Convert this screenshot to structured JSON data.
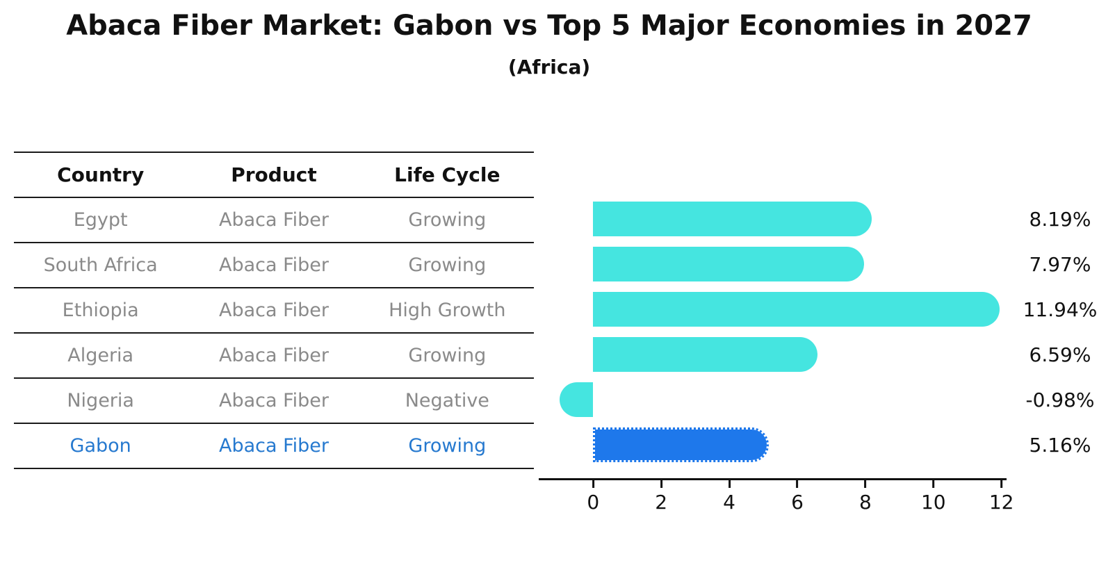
{
  "title": "Abaca Fiber Market: Gabon vs Top 5 Major Economies in 2027",
  "subtitle": "(Africa)",
  "table": {
    "headers": [
      "Country",
      "Product",
      "Life Cycle"
    ],
    "rows": [
      {
        "country": "Egypt",
        "product": "Abaca Fiber",
        "life_cycle": "Growing",
        "highlight": false
      },
      {
        "country": "South Africa",
        "product": "Abaca Fiber",
        "life_cycle": "Growing",
        "highlight": false
      },
      {
        "country": "Ethiopia",
        "product": "Abaca Fiber",
        "life_cycle": "High Growth",
        "highlight": false
      },
      {
        "country": "Algeria",
        "product": "Abaca Fiber",
        "life_cycle": "Growing",
        "highlight": false
      },
      {
        "country": "Nigeria",
        "product": "Abaca Fiber",
        "life_cycle": "Negative",
        "highlight": false
      },
      {
        "country": "Gabon",
        "product": "Abaca Fiber",
        "life_cycle": "Growing",
        "highlight": true
      }
    ]
  },
  "chart_data": {
    "type": "bar",
    "orientation": "horizontal",
    "title": "Abaca Fiber Market: Gabon vs Top 5 Major Economies in 2027",
    "subtitle": "(Africa)",
    "categories": [
      "Egypt",
      "South Africa",
      "Ethiopia",
      "Algeria",
      "Nigeria",
      "Gabon"
    ],
    "values": [
      8.19,
      7.97,
      11.94,
      6.59,
      -0.98,
      5.16
    ],
    "value_labels": [
      "8.19%",
      "7.97%",
      "11.94%",
      "6.59%",
      "-0.98%",
      "5.16%"
    ],
    "unit": "%",
    "xlim": [
      -1.6,
      12.15
    ],
    "xticks": [
      0,
      2,
      4,
      6,
      8,
      10,
      12
    ],
    "grid": false,
    "legend": false,
    "bar_color": "#45e5e0",
    "highlight_color": "#1e78eb",
    "highlight_index": 5,
    "highlight_text_color": "#2679cf"
  }
}
